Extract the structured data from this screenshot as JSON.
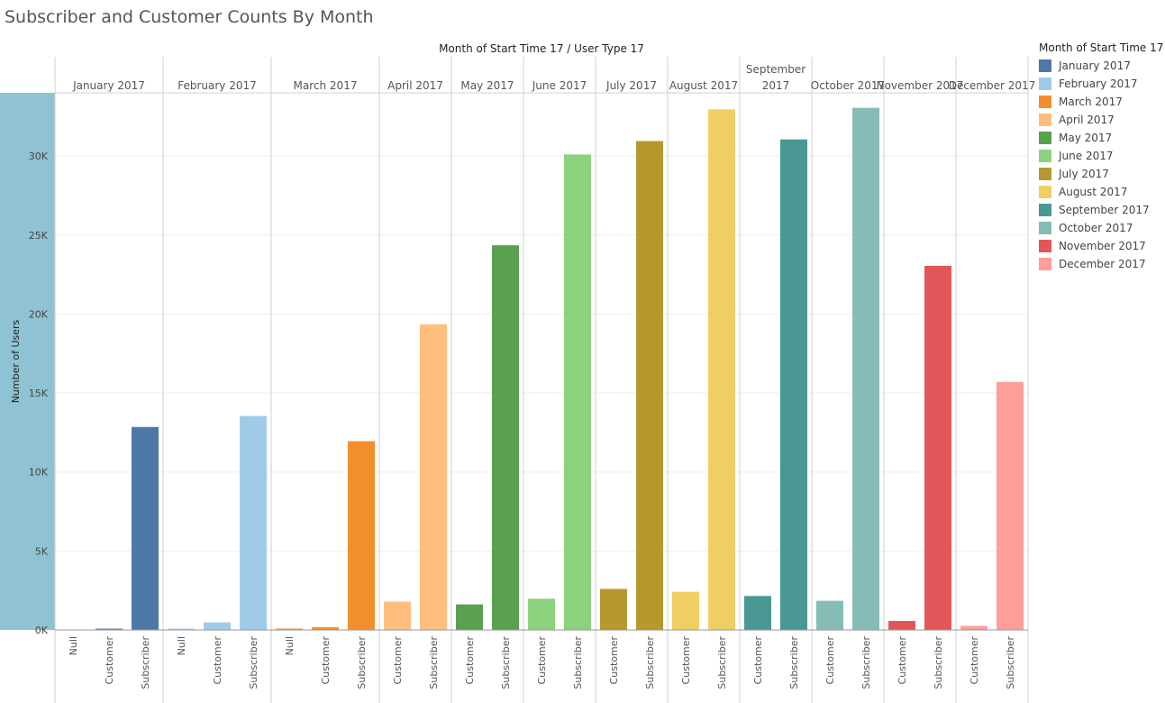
{
  "title": "Subscriber and Customer Counts By Month",
  "legend": {
    "title": "Month of Start Time 17",
    "items": [
      {
        "label": "January 2017",
        "color": "#4e79a7"
      },
      {
        "label": "February 2017",
        "color": "#a0cbe8"
      },
      {
        "label": "March 2017",
        "color": "#f28e2b"
      },
      {
        "label": "April 2017",
        "color": "#ffbe7d"
      },
      {
        "label": "May 2017",
        "color": "#59a14f"
      },
      {
        "label": "June 2017",
        "color": "#8cd17d"
      },
      {
        "label": "July 2017",
        "color": "#b6992d"
      },
      {
        "label": "August 2017",
        "color": "#f1ce63"
      },
      {
        "label": "September 2017",
        "color": "#499894"
      },
      {
        "label": "October 2017",
        "color": "#86bcb6"
      },
      {
        "label": "November 2017",
        "color": "#e15759"
      },
      {
        "label": "December 2017",
        "color": "#ff9d9a"
      }
    ]
  },
  "chart_data": {
    "type": "bar",
    "title": "Subscriber and Customer Counts By Month",
    "column_header": "Month of Start Time 17  /  User Type 17",
    "ylabel": "Number of Users",
    "ylim": [
      0,
      34000
    ],
    "yticks": [
      0,
      5000,
      10000,
      15000,
      20000,
      25000,
      30000
    ],
    "ytick_labels": [
      "0K",
      "5K",
      "10K",
      "15K",
      "20K",
      "25K",
      "30K"
    ],
    "grid": true,
    "legend_position": "right",
    "months": [
      {
        "label": "January 2017",
        "color": "#4e79a7",
        "bars": [
          {
            "user_type": "Null",
            "value": 0
          },
          {
            "user_type": "Customer",
            "value": 60
          },
          {
            "user_type": "Subscriber",
            "value": 12850
          }
        ]
      },
      {
        "label": "February 2017",
        "color": "#a0cbe8",
        "bars": [
          {
            "user_type": "Null",
            "value": 50
          },
          {
            "user_type": "Customer",
            "value": 480
          },
          {
            "user_type": "Subscriber",
            "value": 13550
          }
        ]
      },
      {
        "label": "March 2017",
        "color": "#f28e2b",
        "bars": [
          {
            "user_type": "Null",
            "value": 40
          },
          {
            "user_type": "Customer",
            "value": 180
          },
          {
            "user_type": "Subscriber",
            "value": 11950
          }
        ]
      },
      {
        "label": "April 2017",
        "color": "#ffbe7d",
        "bars": [
          {
            "user_type": "Customer",
            "value": 1800
          },
          {
            "user_type": "Subscriber",
            "value": 19350
          }
        ]
      },
      {
        "label": "May 2017",
        "color": "#59a14f",
        "bars": [
          {
            "user_type": "Customer",
            "value": 1620
          },
          {
            "user_type": "Subscriber",
            "value": 24350
          }
        ]
      },
      {
        "label": "June 2017",
        "color": "#8cd17d",
        "bars": [
          {
            "user_type": "Customer",
            "value": 1980
          },
          {
            "user_type": "Subscriber",
            "value": 30100
          }
        ]
      },
      {
        "label": "July 2017",
        "color": "#b6992d",
        "bars": [
          {
            "user_type": "Customer",
            "value": 2600
          },
          {
            "user_type": "Subscriber",
            "value": 30950
          }
        ]
      },
      {
        "label": "August 2017",
        "color": "#f1ce63",
        "bars": [
          {
            "user_type": "Customer",
            "value": 2420
          },
          {
            "user_type": "Subscriber",
            "value": 32950
          }
        ]
      },
      {
        "label": "September 2017",
        "color": "#499894",
        "bars": [
          {
            "user_type": "Customer",
            "value": 2150
          },
          {
            "user_type": "Subscriber",
            "value": 31050
          }
        ]
      },
      {
        "label": "October 2017",
        "color": "#86bcb6",
        "bars": [
          {
            "user_type": "Customer",
            "value": 1850
          },
          {
            "user_type": "Subscriber",
            "value": 33050
          }
        ]
      },
      {
        "label": "November 2017",
        "color": "#e15759",
        "bars": [
          {
            "user_type": "Customer",
            "value": 570
          },
          {
            "user_type": "Subscriber",
            "value": 23050
          }
        ]
      },
      {
        "label": "December 2017",
        "color": "#ff9d9a",
        "bars": [
          {
            "user_type": "Customer",
            "value": 260
          },
          {
            "user_type": "Subscriber",
            "value": 15700
          }
        ]
      }
    ]
  }
}
